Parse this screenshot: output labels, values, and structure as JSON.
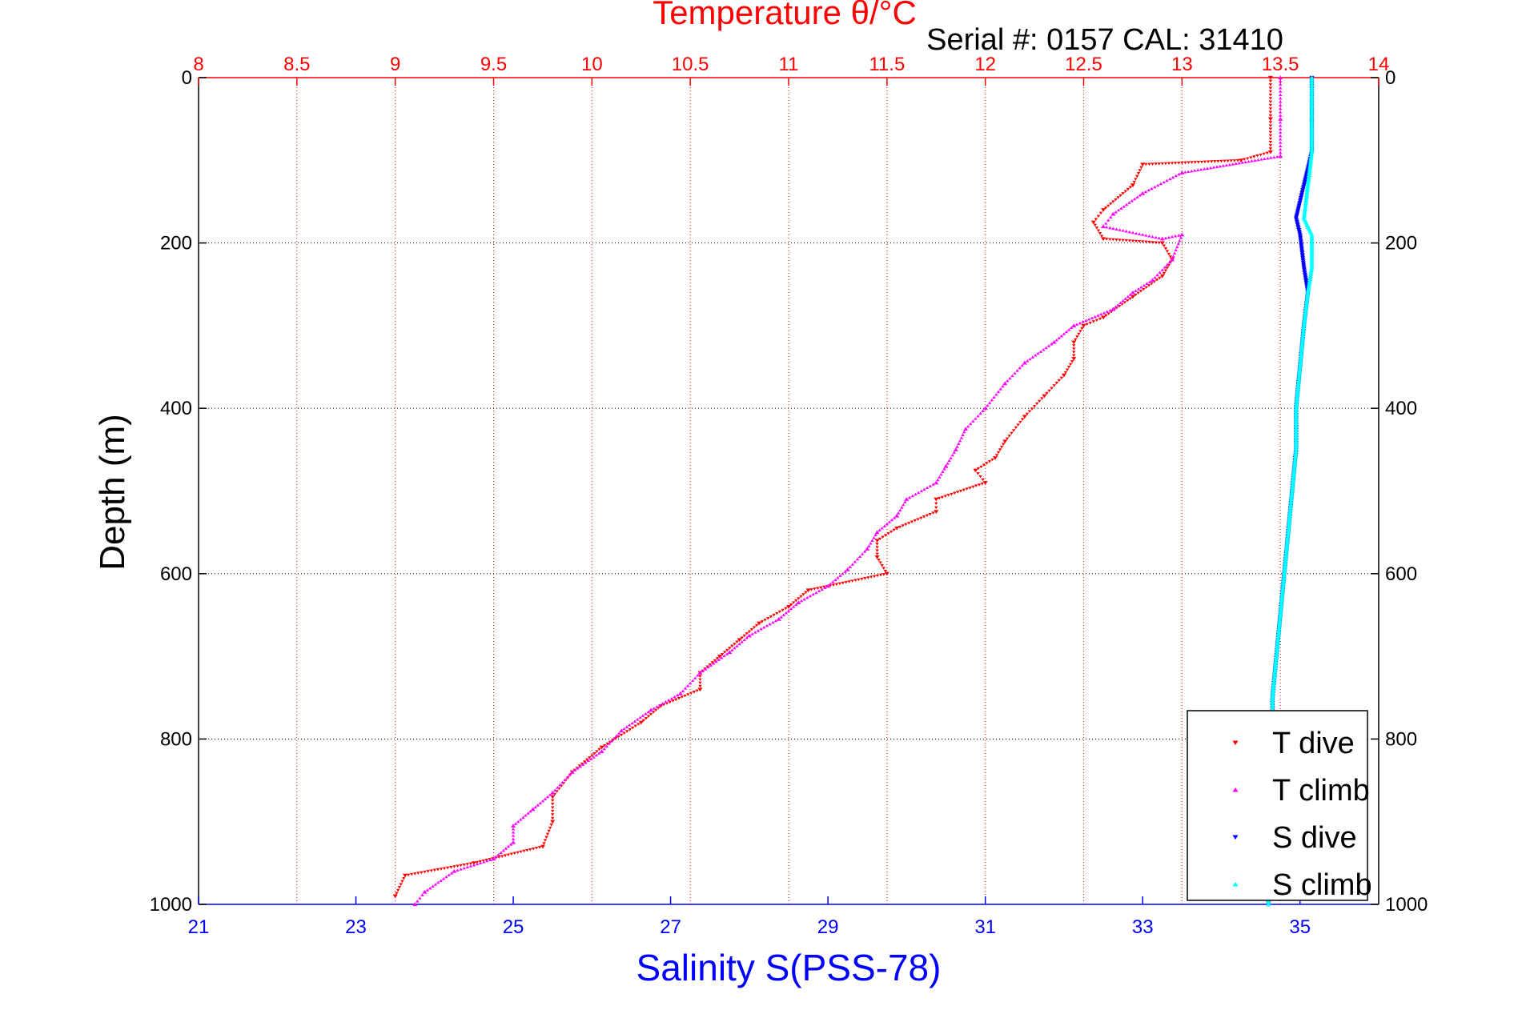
{
  "chart_data": {
    "type": "scatter",
    "title": "Temperature θ/°C",
    "subtitle": "Serial #: 0157  CAL: 31410",
    "ylabel": "Depth (m)",
    "xlabel": "Salinity S(PSS-78)",
    "ylim": [
      0,
      1000
    ],
    "y_reversed": true,
    "y_ticks": [
      "0",
      "200",
      "400",
      "600",
      "800",
      "1000"
    ],
    "top_axis": {
      "label": "Temperature θ/°C",
      "range": [
        8,
        14
      ],
      "ticks": [
        "8",
        "8.5",
        "9",
        "9.5",
        "10",
        "10.5",
        "11",
        "11.5",
        "12",
        "12.5",
        "13",
        "13.5",
        "14"
      ],
      "color": "#ff0000"
    },
    "bottom_axis": {
      "label": "Salinity S(PSS-78)",
      "range": [
        21,
        36
      ],
      "ticks": [
        "21",
        "23",
        "25",
        "27",
        "29",
        "31",
        "33",
        "35"
      ],
      "color": "#0000ff"
    },
    "grid": true,
    "legend_position": "bottom-right",
    "series": [
      {
        "name": "T dive",
        "axis": "top",
        "color": "#ff0000",
        "marker": "triangle-down",
        "points": [
          [
            13.45,
            0
          ],
          [
            13.45,
            50
          ],
          [
            13.45,
            90
          ],
          [
            13.3,
            100
          ],
          [
            12.8,
            105
          ],
          [
            12.75,
            130
          ],
          [
            12.6,
            160
          ],
          [
            12.55,
            175
          ],
          [
            12.6,
            195
          ],
          [
            12.9,
            200
          ],
          [
            12.95,
            220
          ],
          [
            12.9,
            240
          ],
          [
            12.75,
            265
          ],
          [
            12.6,
            290
          ],
          [
            12.5,
            300
          ],
          [
            12.45,
            320
          ],
          [
            12.45,
            340
          ],
          [
            12.4,
            360
          ],
          [
            12.3,
            385
          ],
          [
            12.2,
            410
          ],
          [
            12.1,
            440
          ],
          [
            12.05,
            460
          ],
          [
            11.95,
            475
          ],
          [
            12.0,
            490
          ],
          [
            11.75,
            510
          ],
          [
            11.75,
            525
          ],
          [
            11.55,
            545
          ],
          [
            11.45,
            560
          ],
          [
            11.45,
            580
          ],
          [
            11.5,
            600
          ],
          [
            11.1,
            620
          ],
          [
            11.0,
            640
          ],
          [
            10.85,
            660
          ],
          [
            10.75,
            680
          ],
          [
            10.65,
            700
          ],
          [
            10.55,
            720
          ],
          [
            10.55,
            740
          ],
          [
            10.35,
            760
          ],
          [
            10.25,
            780
          ],
          [
            10.05,
            810
          ],
          [
            9.9,
            840
          ],
          [
            9.8,
            870
          ],
          [
            9.8,
            900
          ],
          [
            9.75,
            930
          ],
          [
            9.4,
            950
          ],
          [
            9.05,
            965
          ],
          [
            9.0,
            990
          ]
        ]
      },
      {
        "name": "T climb",
        "axis": "top",
        "color": "#ff00ff",
        "marker": "triangle-up",
        "points": [
          [
            13.5,
            0
          ],
          [
            13.5,
            50
          ],
          [
            13.5,
            95
          ],
          [
            13.0,
            115
          ],
          [
            12.8,
            140
          ],
          [
            12.65,
            165
          ],
          [
            12.6,
            180
          ],
          [
            12.9,
            195
          ],
          [
            13.0,
            190
          ],
          [
            12.95,
            220
          ],
          [
            12.85,
            245
          ],
          [
            12.75,
            260
          ],
          [
            12.65,
            280
          ],
          [
            12.45,
            300
          ],
          [
            12.35,
            320
          ],
          [
            12.2,
            345
          ],
          [
            12.1,
            370
          ],
          [
            12.0,
            400
          ],
          [
            11.9,
            425
          ],
          [
            11.85,
            450
          ],
          [
            11.8,
            470
          ],
          [
            11.75,
            490
          ],
          [
            11.6,
            510
          ],
          [
            11.55,
            530
          ],
          [
            11.45,
            550
          ],
          [
            11.4,
            570
          ],
          [
            11.3,
            595
          ],
          [
            11.2,
            615
          ],
          [
            11.05,
            635
          ],
          [
            10.95,
            655
          ],
          [
            10.8,
            675
          ],
          [
            10.7,
            695
          ],
          [
            10.55,
            720
          ],
          [
            10.45,
            745
          ],
          [
            10.3,
            765
          ],
          [
            10.15,
            790
          ],
          [
            10.05,
            815
          ],
          [
            9.9,
            840
          ],
          [
            9.8,
            865
          ],
          [
            9.7,
            885
          ],
          [
            9.6,
            905
          ],
          [
            9.6,
            925
          ],
          [
            9.5,
            945
          ],
          [
            9.3,
            960
          ],
          [
            9.15,
            985
          ],
          [
            9.1,
            1000
          ]
        ]
      },
      {
        "name": "S dive",
        "axis": "bottom",
        "color": "#0000ff",
        "marker": "triangle-down",
        "points": [
          [
            35.15,
            0
          ],
          [
            35.15,
            90
          ],
          [
            35.05,
            130
          ],
          [
            34.95,
            170
          ],
          [
            35.0,
            190
          ],
          [
            35.05,
            230
          ],
          [
            35.1,
            260
          ],
          [
            35.05,
            300
          ],
          [
            35.0,
            350
          ],
          [
            34.95,
            400
          ],
          [
            34.95,
            450
          ],
          [
            34.9,
            500
          ],
          [
            34.85,
            550
          ],
          [
            34.8,
            600
          ],
          [
            34.75,
            650
          ],
          [
            34.7,
            700
          ],
          [
            34.65,
            750
          ],
          [
            34.65,
            800
          ],
          [
            34.65,
            850
          ],
          [
            34.6,
            900
          ],
          [
            34.6,
            950
          ],
          [
            34.6,
            1000
          ]
        ]
      },
      {
        "name": "S climb",
        "axis": "bottom",
        "color": "#00ffff",
        "marker": "triangle-up",
        "points": [
          [
            35.15,
            0
          ],
          [
            35.15,
            90
          ],
          [
            35.1,
            130
          ],
          [
            35.05,
            170
          ],
          [
            35.15,
            190
          ],
          [
            35.15,
            230
          ],
          [
            35.1,
            260
          ],
          [
            35.05,
            300
          ],
          [
            35.0,
            350
          ],
          [
            34.95,
            400
          ],
          [
            34.95,
            450
          ],
          [
            34.9,
            500
          ],
          [
            34.85,
            550
          ],
          [
            34.8,
            600
          ],
          [
            34.75,
            650
          ],
          [
            34.7,
            700
          ],
          [
            34.65,
            750
          ],
          [
            34.65,
            800
          ],
          [
            34.65,
            850
          ],
          [
            34.6,
            900
          ],
          [
            34.6,
            950
          ],
          [
            34.6,
            1000
          ]
        ]
      }
    ]
  }
}
